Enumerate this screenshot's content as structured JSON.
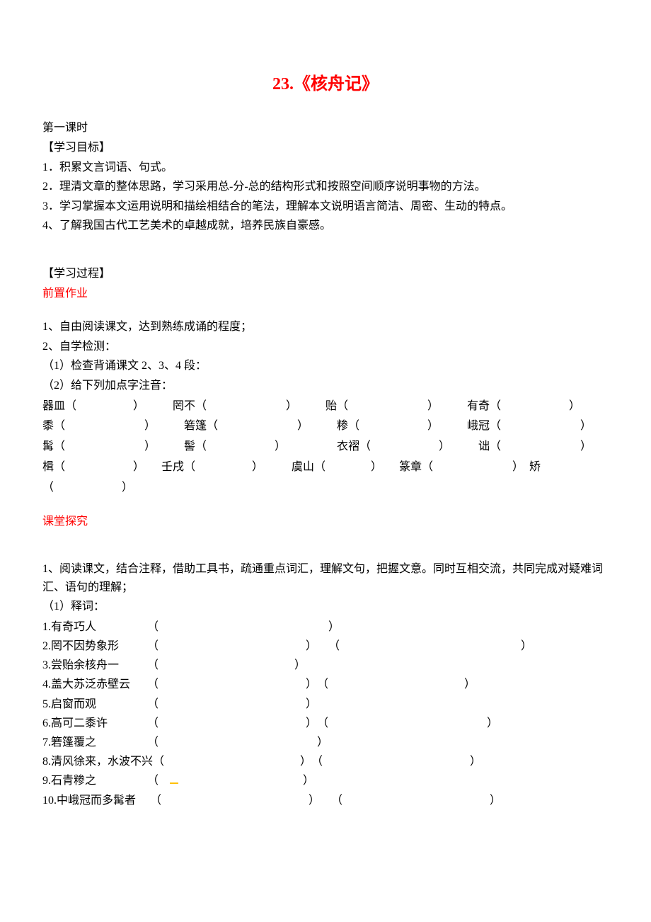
{
  "title": "23.《核舟记》",
  "lesson_header": "第一课时",
  "objectives": {
    "heading": "【学习目标】",
    "items": [
      "1．积累文言词语、句式。",
      "2．理清文章的整体思路，学习采用总-分-总的结构形式和按照空间顺序说明事物的方法。",
      "3．学习掌握本文运用说明和描绘相结合的笔法，理解本文说明语言简洁、周密、生动的特点。",
      "4、了解我国古代工艺美术的卓越成就，培养民族自豪感。"
    ]
  },
  "process": {
    "heading": "【学习过程】",
    "pre_work_label": "前置作业",
    "pre_work_items": [
      "1、自由阅读课文，达到熟练成诵的程度；",
      "2、自学检测：",
      "（1）检查背诵课文 2、3、4 段：",
      "（2）给下列加点字注音："
    ],
    "pinyin_rows": [
      "器皿（　　　　　）　　　罔不（　　　　　　　）　　　贻（　　　　　　　）　　　有奇（　　　　　　）",
      " 黍（　　　　　　　）　　　箬篷（　　　　　　　）　　　糁（　　　　　　）　　　峨冠（　　　　　　　）",
      " 髯（　　　　　　　）　　　髻（　　　　　　）　　　　　衣褶（　　　　　　）　　　诎（　　　　　　　）",
      " 楫（　　　　　　）　　壬戌（　　　　　）　　　虞山（　　　　）　　篆章（　　　　　　　）　矫（　　　　　　）"
    ],
    "inquiry_label": "课堂探究",
    "inquiry_intro": "1、阅读课文，结合注释，借助工具书，疏通重点词汇，理解文句，把握文意。同时互相交流，共同完成对疑难词汇、语句的理解；",
    "word_heading": "（1）释词：",
    "word_items": [
      "1.有奇巧人　　　　　（　　　　　　　　　　　　　　　）",
      "2.罔不因势象形　　　（　　　　　　　　　　　　　）　　（　　　　　　　　　　　　　　　　）",
      "3.尝贻余核舟一　　　（　　　　　　　　　　　　）",
      "4.盖大苏泛赤壁云　　（　　　　　　　　　　　　　）　（　　　　　　　　　　　　）",
      "5.启窗而观　　　　　（　　　　　　　　　　　　　）",
      "6.高可二黍许　　　　（　　　　　　　　　　　　　）　（　　　　　　　　　　　　　　）",
      "7.箬篷覆之　　　　　（　　　　　　　　　　　　　　）",
      "8.清风徐来，水波不兴（　　　　　　　　　　　　）　（　　　　　　　　　　　　　）",
      "9.石青糁之　　　　　（　",
      "10.中峨冠而多髯者　 （　　　　　　　　　　　　　）　　（　　　　　　　　　　　　　）"
    ]
  },
  "colors": {
    "title_color": "#ff0000",
    "text_color": "#000000",
    "background": "#ffffff",
    "underline_color": "#ffc000"
  },
  "typography": {
    "title_fontsize": 24,
    "body_fontsize": 16,
    "font_family": "SimSun"
  }
}
